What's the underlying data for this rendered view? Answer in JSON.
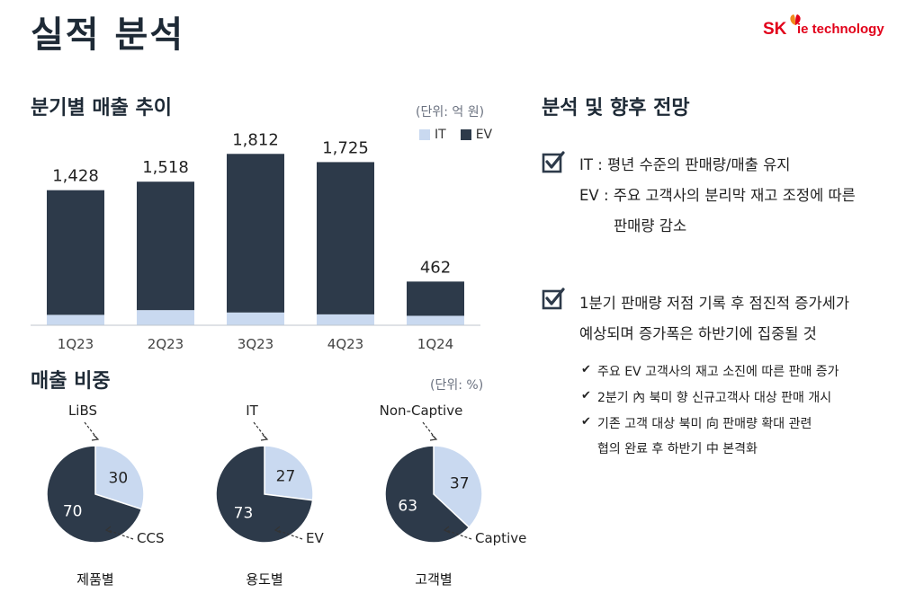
{
  "header": {
    "title": "실적 분석",
    "logo_sk": "SK",
    "logo_text": "ie technology"
  },
  "colors": {
    "ev": "#2d3a4a",
    "it": "#c9d9f0",
    "brand": "#e2001a"
  },
  "sales": {
    "title": "분기별 매출 추이",
    "unit": "(단위: 억 원)",
    "legend": [
      {
        "name": "IT",
        "color": "#c9d9f0"
      },
      {
        "name": "EV",
        "color": "#2d3a4a"
      }
    ]
  },
  "chart_data": [
    {
      "type": "bar",
      "stacked": true,
      "title": "분기별 매출 추이",
      "unit": "(단위: 억 원)",
      "categories": [
        "1Q23",
        "2Q23",
        "3Q23",
        "4Q23",
        "1Q24"
      ],
      "totals": [
        1428,
        1518,
        1812,
        1725,
        462
      ],
      "total_labels": [
        "1,428",
        "1,518",
        "1,812",
        "1,725",
        "462"
      ],
      "series": [
        {
          "name": "IT",
          "color": "#c9d9f0",
          "values": [
            110,
            160,
            135,
            115,
            100
          ]
        },
        {
          "name": "EV",
          "color": "#2d3a4a",
          "values": [
            1318,
            1358,
            1677,
            1610,
            362
          ]
        }
      ],
      "ylim": [
        0,
        1900
      ],
      "grid": false,
      "legend_position": "top-right"
    },
    {
      "type": "pie",
      "title": "매출 비중",
      "unit": "(단위: %)",
      "charts": [
        {
          "caption": "제품별",
          "slices": [
            {
              "label": "LiBS",
              "value": 30,
              "color": "#c9d9f0"
            },
            {
              "label": "CCS",
              "value": 70,
              "color": "#2d3a4a"
            }
          ]
        },
        {
          "caption": "용도별",
          "slices": [
            {
              "label": "IT",
              "value": 27,
              "color": "#c9d9f0"
            },
            {
              "label": "EV",
              "value": 73,
              "color": "#2d3a4a"
            }
          ]
        },
        {
          "caption": "고객별",
          "slices": [
            {
              "label": "Non-Captive",
              "value": 37,
              "color": "#c9d9f0"
            },
            {
              "label": "Captive",
              "value": 63,
              "color": "#2d3a4a"
            }
          ]
        }
      ]
    }
  ],
  "mix": {
    "title": "매출 비중",
    "unit": "(단위: %)"
  },
  "analysis": {
    "title": "분석 및 향후 전망",
    "block1": {
      "line1": "IT : 평년 수준의 판매량/매출 유지",
      "line2": "EV : 주요 고객사의 분리막 재고 조정에 따른",
      "line3": "판매량 감소"
    },
    "block2": {
      "line1": "1분기 판매량 저점 기록 후 점진적 증가세가",
      "line2": "예상되며 증가폭은 하반기에 집중될 것",
      "items": [
        "주요 EV 고객사의 재고 소진에 따른 판매 증가",
        "2분기 內 북미 향 신규고객사 대상 판매 개시",
        "기존 고객 대상 북미 向 판매량 확대 관련"
      ],
      "item3_cont": "협의 완료 후 하반기 中 본격화"
    }
  }
}
